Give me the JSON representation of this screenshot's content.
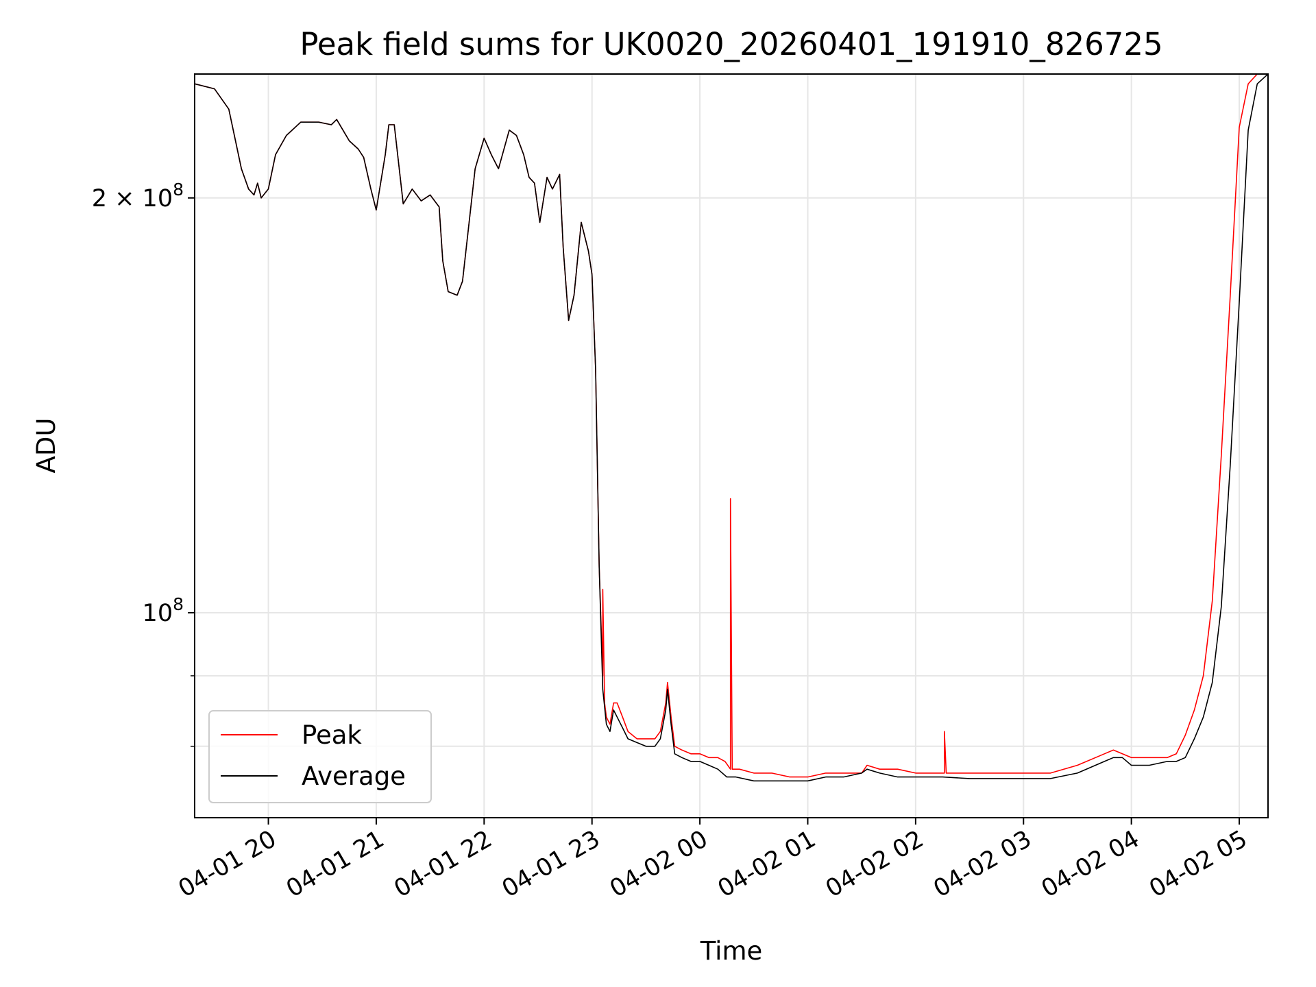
{
  "chart_data": {
    "type": "line",
    "title": "Peak field sums for UK0020_20260401_191910_826725",
    "xlabel": "Time",
    "ylabel": "ADU",
    "y_scale": "log",
    "x_ticks": [
      "04-01 20",
      "04-01 21",
      "04-01 22",
      "04-01 23",
      "04-02 00",
      "04-02 01",
      "04-02 02",
      "04-02 03",
      "04-02 04",
      "04-02 05"
    ],
    "x_tick_values": [
      "2026-04-01T20:00",
      "2026-04-01T21:00",
      "2026-04-01T22:00",
      "2026-04-01T23:00",
      "2026-04-02T00:00",
      "2026-04-02T01:00",
      "2026-04-02T02:00",
      "2026-04-02T03:00",
      "2026-04-02T04:00",
      "2026-04-02T05:00"
    ],
    "x_range": [
      "2026-04-01T19:19",
      "2026-04-02T05:16"
    ],
    "ylim": [
      71000000,
      246000000
    ],
    "y_ticks": [
      {
        "value": 100000000,
        "mantissa": "",
        "exponent": "8"
      },
      {
        "value": 200000000,
        "mantissa": "2",
        "exponent": "8"
      }
    ],
    "y_minor_ticks": [
      80000000,
      90000000,
      300000000
    ],
    "grid": true,
    "legend_position": "lower-left",
    "series": [
      {
        "name": "Peak",
        "color": "#ff0000",
        "x": [
          "2026-04-01T19:19",
          "2026-04-01T19:30",
          "2026-04-01T19:38",
          "2026-04-01T19:45",
          "2026-04-01T19:49",
          "2026-04-01T19:52",
          "2026-04-01T19:54",
          "2026-04-01T19:56",
          "2026-04-01T20:00",
          "2026-04-01T20:04",
          "2026-04-01T20:10",
          "2026-04-01T20:18",
          "2026-04-01T20:28",
          "2026-04-01T20:35",
          "2026-04-01T20:38",
          "2026-04-01T20:45",
          "2026-04-01T20:50",
          "2026-04-01T20:53",
          "2026-04-01T20:57",
          "2026-04-01T21:00",
          "2026-04-01T21:05",
          "2026-04-01T21:07",
          "2026-04-01T21:10",
          "2026-04-01T21:15",
          "2026-04-01T21:20",
          "2026-04-01T21:25",
          "2026-04-01T21:30",
          "2026-04-01T21:35",
          "2026-04-01T21:37",
          "2026-04-01T21:40",
          "2026-04-01T21:45",
          "2026-04-01T21:48",
          "2026-04-01T21:55",
          "2026-04-01T22:00",
          "2026-04-01T22:04",
          "2026-04-01T22:08",
          "2026-04-01T22:14",
          "2026-04-01T22:18",
          "2026-04-01T22:22",
          "2026-04-01T22:25",
          "2026-04-01T22:28",
          "2026-04-01T22:31",
          "2026-04-01T22:35",
          "2026-04-01T22:38",
          "2026-04-01T22:42",
          "2026-04-01T22:44",
          "2026-04-01T22:47",
          "2026-04-01T22:50",
          "2026-04-01T22:54",
          "2026-04-01T22:58",
          "2026-04-01T23:00",
          "2026-04-01T23:02",
          "2026-04-01T23:04",
          "2026-04-01T23:06",
          "2026-04-01T23:06",
          "2026-04-01T23:07",
          "2026-04-01T23:08",
          "2026-04-01T23:10",
          "2026-04-01T23:12",
          "2026-04-01T23:14",
          "2026-04-01T23:17",
          "2026-04-01T23:20",
          "2026-04-01T23:25",
          "2026-04-01T23:30",
          "2026-04-01T23:35",
          "2026-04-01T23:38",
          "2026-04-01T23:41",
          "2026-04-01T23:42",
          "2026-04-01T23:44",
          "2026-04-01T23:46",
          "2026-04-01T23:50",
          "2026-04-01T23:55",
          "2026-04-02T00:00",
          "2026-04-02T00:05",
          "2026-04-02T00:10",
          "2026-04-02T00:14",
          "2026-04-02T00:17",
          "2026-04-02T00:17",
          "2026-04-02T00:18",
          "2026-04-02T00:22",
          "2026-04-02T00:30",
          "2026-04-02T00:40",
          "2026-04-02T00:50",
          "2026-04-02T01:00",
          "2026-04-02T01:10",
          "2026-04-02T01:20",
          "2026-04-02T01:30",
          "2026-04-02T01:33",
          "2026-04-02T01:40",
          "2026-04-02T01:50",
          "2026-04-02T02:00",
          "2026-04-02T02:16",
          "2026-04-02T02:16",
          "2026-04-02T02:17",
          "2026-04-02T02:30",
          "2026-04-02T02:45",
          "2026-04-02T03:00",
          "2026-04-02T03:15",
          "2026-04-02T03:30",
          "2026-04-02T03:45",
          "2026-04-02T03:50",
          "2026-04-02T03:55",
          "2026-04-02T04:00",
          "2026-04-02T04:10",
          "2026-04-02T04:20",
          "2026-04-02T04:25",
          "2026-04-02T04:30",
          "2026-04-02T04:35",
          "2026-04-02T04:40",
          "2026-04-02T04:45",
          "2026-04-02T04:50",
          "2026-04-02T04:55",
          "2026-04-02T05:00",
          "2026-04-02T05:05",
          "2026-04-02T05:10",
          "2026-04-02T05:16"
        ],
        "y": [
          242000000,
          240000000,
          232000000,
          210000000,
          203000000,
          201000000,
          205000000,
          200000000,
          203000000,
          215000000,
          222000000,
          227000000,
          227000000,
          226000000,
          228000000,
          220000000,
          217000000,
          214000000,
          203000000,
          196000000,
          215000000,
          226000000,
          226000000,
          198000000,
          203000000,
          199000000,
          201000000,
          197000000,
          180000000,
          171000000,
          170000000,
          174000000,
          210000000,
          221000000,
          215000000,
          210000000,
          224000000,
          222000000,
          215000000,
          207000000,
          205000000,
          192000000,
          207000000,
          203000000,
          208000000,
          184000000,
          163000000,
          170000000,
          192000000,
          183000000,
          176000000,
          150000000,
          108000000,
          90000000,
          104000000,
          86000000,
          84000000,
          83000000,
          86000000,
          86000000,
          84000000,
          82000000,
          81000000,
          81000000,
          81000000,
          82000000,
          86000000,
          89000000,
          84000000,
          80000000,
          79500000,
          79000000,
          79000000,
          78500000,
          78500000,
          78000000,
          77000000,
          121000000,
          77000000,
          77000000,
          76500000,
          76500000,
          76000000,
          76000000,
          76500000,
          76500000,
          76500000,
          77500000,
          77000000,
          77000000,
          76500000,
          76500000,
          82000000,
          76500000,
          76500000,
          76500000,
          76500000,
          76500000,
          77500000,
          79000000,
          79500000,
          79000000,
          78500000,
          78500000,
          78500000,
          79000000,
          81500000,
          85000000,
          90000000,
          102000000,
          130000000,
          170000000,
          225000000,
          242000000,
          246000000,
          246000000
        ]
      },
      {
        "name": "Average",
        "color": "#000000",
        "x": [
          "2026-04-01T19:19",
          "2026-04-01T19:30",
          "2026-04-01T19:38",
          "2026-04-01T19:45",
          "2026-04-01T19:49",
          "2026-04-01T19:52",
          "2026-04-01T19:54",
          "2026-04-01T19:56",
          "2026-04-01T20:00",
          "2026-04-01T20:04",
          "2026-04-01T20:10",
          "2026-04-01T20:18",
          "2026-04-01T20:28",
          "2026-04-01T20:35",
          "2026-04-01T20:38",
          "2026-04-01T20:45",
          "2026-04-01T20:50",
          "2026-04-01T20:53",
          "2026-04-01T20:57",
          "2026-04-01T21:00",
          "2026-04-01T21:05",
          "2026-04-01T21:07",
          "2026-04-01T21:10",
          "2026-04-01T21:15",
          "2026-04-01T21:20",
          "2026-04-01T21:25",
          "2026-04-01T21:30",
          "2026-04-01T21:35",
          "2026-04-01T21:37",
          "2026-04-01T21:40",
          "2026-04-01T21:45",
          "2026-04-01T21:48",
          "2026-04-01T21:55",
          "2026-04-01T22:00",
          "2026-04-01T22:04",
          "2026-04-01T22:08",
          "2026-04-01T22:14",
          "2026-04-01T22:18",
          "2026-04-01T22:22",
          "2026-04-01T22:25",
          "2026-04-01T22:28",
          "2026-04-01T22:31",
          "2026-04-01T22:35",
          "2026-04-01T22:38",
          "2026-04-01T22:42",
          "2026-04-01T22:44",
          "2026-04-01T22:47",
          "2026-04-01T22:50",
          "2026-04-01T22:54",
          "2026-04-01T22:58",
          "2026-04-01T23:00",
          "2026-04-01T23:02",
          "2026-04-01T23:04",
          "2026-04-01T23:06",
          "2026-04-01T23:08",
          "2026-04-01T23:10",
          "2026-04-01T23:12",
          "2026-04-01T23:14",
          "2026-04-01T23:17",
          "2026-04-01T23:20",
          "2026-04-01T23:25",
          "2026-04-01T23:30",
          "2026-04-01T23:35",
          "2026-04-01T23:38",
          "2026-04-01T23:41",
          "2026-04-01T23:42",
          "2026-04-01T23:44",
          "2026-04-01T23:46",
          "2026-04-01T23:50",
          "2026-04-01T23:55",
          "2026-04-02T00:00",
          "2026-04-02T00:05",
          "2026-04-02T00:10",
          "2026-04-02T00:15",
          "2026-04-02T00:20",
          "2026-04-02T00:30",
          "2026-04-02T00:40",
          "2026-04-02T00:50",
          "2026-04-02T01:00",
          "2026-04-02T01:10",
          "2026-04-02T01:20",
          "2026-04-02T01:30",
          "2026-04-02T01:33",
          "2026-04-02T01:40",
          "2026-04-02T01:50",
          "2026-04-02T02:00",
          "2026-04-02T02:15",
          "2026-04-02T02:30",
          "2026-04-02T02:45",
          "2026-04-02T03:00",
          "2026-04-02T03:15",
          "2026-04-02T03:30",
          "2026-04-02T03:45",
          "2026-04-02T03:50",
          "2026-04-02T03:55",
          "2026-04-02T04:00",
          "2026-04-02T04:10",
          "2026-04-02T04:20",
          "2026-04-02T04:25",
          "2026-04-02T04:30",
          "2026-04-02T04:35",
          "2026-04-02T04:40",
          "2026-04-02T04:45",
          "2026-04-02T04:50",
          "2026-04-02T04:55",
          "2026-04-02T05:00",
          "2026-04-02T05:05",
          "2026-04-02T05:10",
          "2026-04-02T05:16"
        ],
        "y": [
          242000000,
          240000000,
          232000000,
          210000000,
          203000000,
          201000000,
          205000000,
          200000000,
          203000000,
          215000000,
          222000000,
          227000000,
          227000000,
          226000000,
          228000000,
          220000000,
          217000000,
          214000000,
          203000000,
          196000000,
          215000000,
          226000000,
          226000000,
          198000000,
          203000000,
          199000000,
          201000000,
          197000000,
          180000000,
          171000000,
          170000000,
          174000000,
          210000000,
          221000000,
          215000000,
          210000000,
          224000000,
          222000000,
          215000000,
          207000000,
          205000000,
          192000000,
          207000000,
          203000000,
          208000000,
          184000000,
          163000000,
          170000000,
          192000000,
          183000000,
          176000000,
          150000000,
          108000000,
          88000000,
          83000000,
          82000000,
          85000000,
          84000000,
          82500000,
          81000000,
          80500000,
          80000000,
          80000000,
          81000000,
          85000000,
          88000000,
          83000000,
          79000000,
          78500000,
          78000000,
          78000000,
          77500000,
          77000000,
          76000000,
          76000000,
          75500000,
          75500000,
          75500000,
          75500000,
          76000000,
          76000000,
          76500000,
          77000000,
          76500000,
          76000000,
          76000000,
          76000000,
          75800000,
          75800000,
          75800000,
          75800000,
          76500000,
          78000000,
          78500000,
          78500000,
          77500000,
          77500000,
          78000000,
          78000000,
          78500000,
          81000000,
          84000000,
          89000000,
          101000000,
          128000000,
          168000000,
          224000000,
          242000000,
          246000000
        ]
      }
    ]
  }
}
